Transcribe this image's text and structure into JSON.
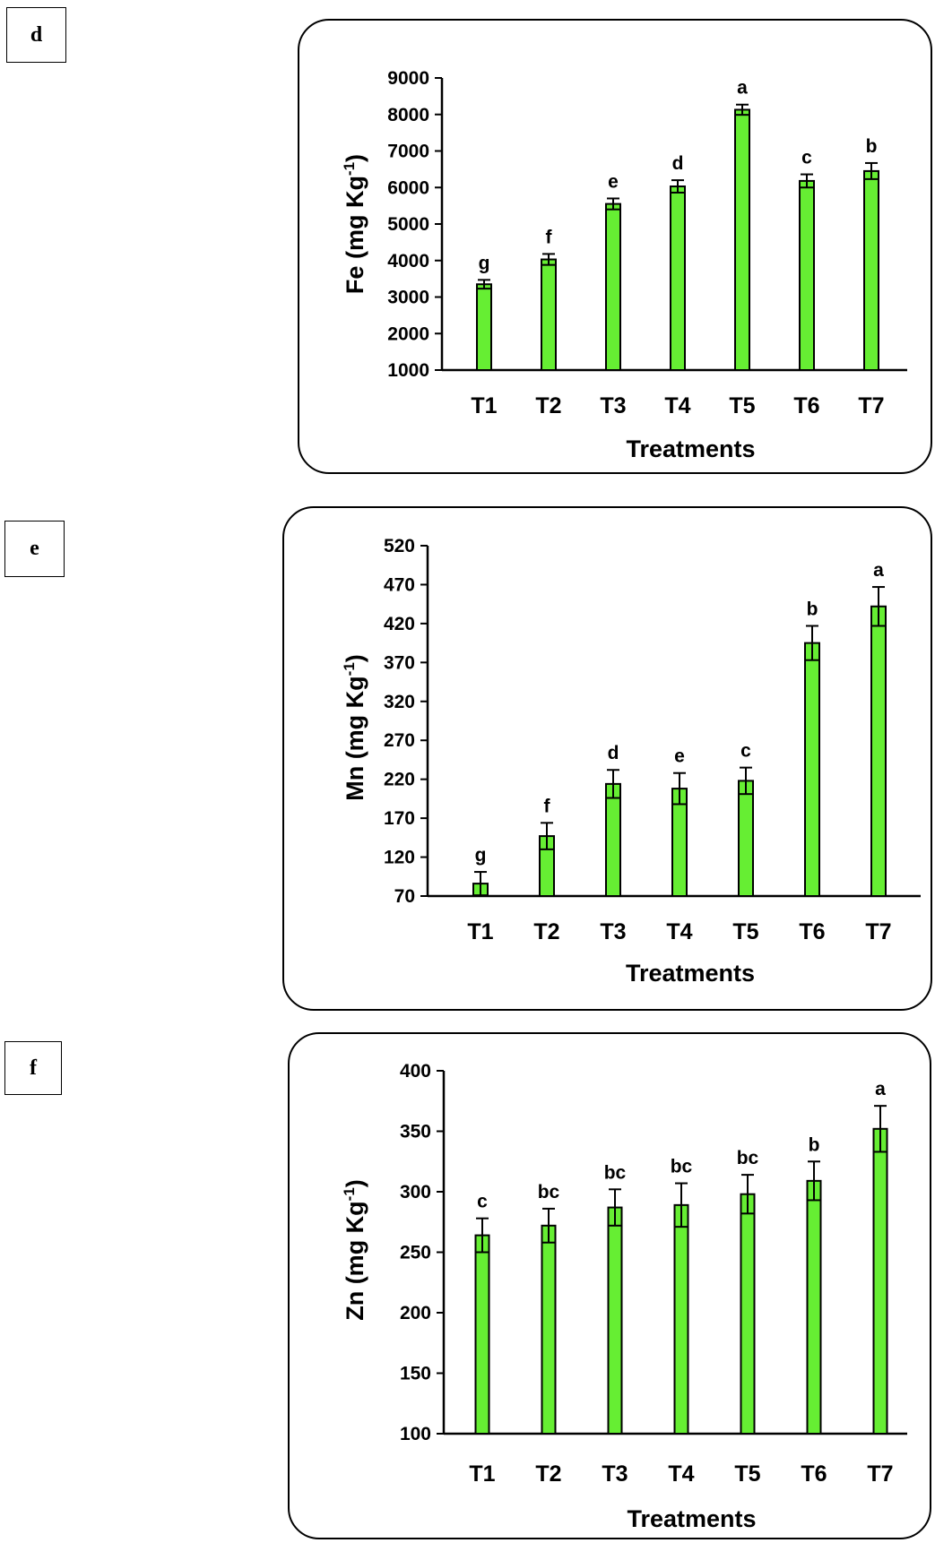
{
  "panels": [
    {
      "label": "d"
    },
    {
      "label": "e"
    },
    {
      "label": "f"
    }
  ],
  "colors": {
    "bar_fill": "#66ee33",
    "bar_stroke": "#000000",
    "axis": "#000000"
  },
  "chart_data": [
    {
      "type": "bar",
      "ylabel": "Fe (mg Kg-1)",
      "ylabel_parts": {
        "main": "Fe (mg Kg",
        "sup": "-1",
        "end": ")"
      },
      "xlabel": "Treatments",
      "categories": [
        "T1",
        "T2",
        "T3",
        "T4",
        "T5",
        "T6",
        "T7"
      ],
      "values": [
        3350,
        4030,
        5550,
        6030,
        8130,
        6180,
        6450
      ],
      "errors": [
        120,
        150,
        150,
        170,
        140,
        180,
        220
      ],
      "letters": [
        "g",
        "f",
        "e",
        "d",
        "a",
        "c",
        "b"
      ],
      "ylim": [
        1000,
        9000
      ],
      "yticks": [
        1000,
        2000,
        3000,
        4000,
        5000,
        6000,
        7000,
        8000,
        9000
      ],
      "grid": false,
      "legend": "none"
    },
    {
      "type": "bar",
      "ylabel": "Mn (mg Kg-1)",
      "ylabel_parts": {
        "main": "Mn (mg Kg",
        "sup": "-1",
        "end": ")"
      },
      "xlabel": "Treatments",
      "categories": [
        "T1",
        "T2",
        "T3",
        "T4",
        "T5",
        "T6",
        "T7"
      ],
      "values": [
        86,
        147,
        214,
        208,
        218,
        395,
        442
      ],
      "errors": [
        15,
        17,
        18,
        20,
        17,
        22,
        25
      ],
      "letters": [
        "g",
        "f",
        "d",
        "e",
        "c",
        "b",
        "a"
      ],
      "ylim": [
        70,
        520
      ],
      "yticks": [
        70,
        120,
        170,
        220,
        270,
        320,
        370,
        420,
        470,
        520
      ],
      "grid": false,
      "legend": "none"
    },
    {
      "type": "bar",
      "ylabel": "Zn (mg Kg-1)",
      "ylabel_parts": {
        "main": "Zn (mg Kg",
        "sup": "-1",
        "end": ")"
      },
      "xlabel": "Treatments",
      "categories": [
        "T1",
        "T2",
        "T3",
        "T4",
        "T5",
        "T6",
        "T7"
      ],
      "values": [
        264,
        272,
        287,
        289,
        298,
        309,
        352
      ],
      "errors": [
        14,
        14,
        15,
        18,
        16,
        16,
        19
      ],
      "letters": [
        "c",
        "bc",
        "bc",
        "bc",
        "bc",
        "b",
        "a"
      ],
      "ylim": [
        100,
        400
      ],
      "yticks": [
        100,
        150,
        200,
        250,
        300,
        350,
        400
      ],
      "grid": false,
      "legend": "none"
    }
  ]
}
